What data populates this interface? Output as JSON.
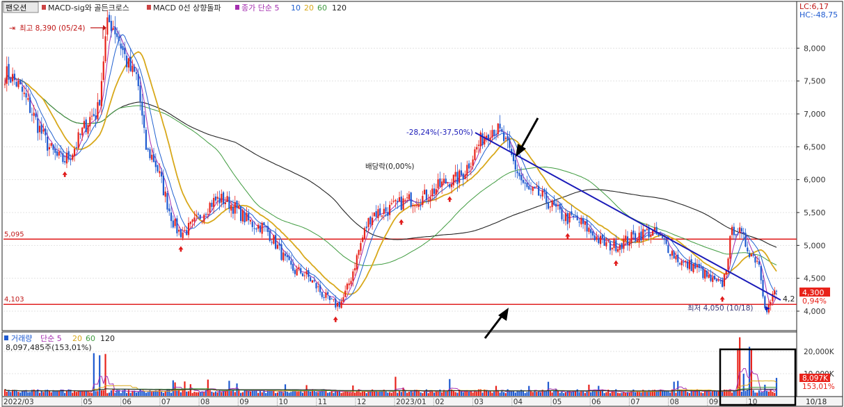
{
  "legend_top": {
    "tab": "팬오션",
    "macd_sig": "MACD-sig와 골든크로스",
    "macd_zero": "MACD 0선 상향돌파",
    "ma_label": "종가 단순 5",
    "ma_periods": [
      "10",
      "20",
      "60",
      "120"
    ]
  },
  "legend_volume": {
    "label": "거래량",
    "ma_label": "단순 5",
    "ma_periods": [
      "20",
      "60",
      "120"
    ],
    "value_text": "8,097,485주(153,01%)"
  },
  "corner_info": {
    "lc": "LC:6,17",
    "hc": "HC:-48,75"
  },
  "badges": {
    "price": "4,300",
    "change": "0,94%",
    "volume": "8,097K",
    "volume_pct": "153,01%",
    "date": "10/18"
  },
  "colors": {
    "up": "#e8221a",
    "down": "#1e5ad0",
    "ma5": "#a52fb0",
    "ma10": "#2060d0",
    "ma20": "#d8a81a",
    "ma60": "#3f9b3f",
    "ma120": "#222222",
    "trend": "#1a1ab8",
    "hline": "#e02222",
    "axis_text": "#333333"
  },
  "chart_data": {
    "type": "candlestick",
    "title": "팬오션",
    "y_axis": {
      "min": 3800,
      "max": 8500,
      "ticks": [
        "8,000",
        "7,500",
        "7,000",
        "6,500",
        "6,000",
        "5,500",
        "5,000",
        "4,500",
        "4,000"
      ],
      "tick_values": [
        8000,
        7500,
        7000,
        6500,
        6000,
        5500,
        5000,
        4500,
        4000
      ]
    },
    "volume_axis": {
      "max": 25000,
      "ticks": [
        "20,000K",
        "10,000K"
      ],
      "tick_values": [
        20000,
        10000
      ]
    },
    "x_axis": {
      "labels": [
        "2022/03",
        "05",
        "06",
        "07",
        "08",
        "09",
        "10",
        "11",
        "12",
        "2023/01",
        "02",
        "03",
        "04",
        "05",
        "06",
        "07",
        "08",
        "09",
        "10"
      ]
    },
    "price_keypoints": [
      [
        "2022/03",
        7600
      ],
      [
        "2022/04",
        6300
      ],
      [
        "2022/05",
        7000
      ],
      [
        "2022/05",
        8390
      ],
      [
        "2022/06",
        7600
      ],
      [
        "2022/06",
        6400
      ],
      [
        "2022/07",
        5200
      ],
      [
        "2022/08",
        5700
      ],
      [
        "2022/09",
        5300
      ],
      [
        "2022/10",
        4600
      ],
      [
        "2022/11",
        4103
      ],
      [
        "2022/12",
        5500
      ],
      [
        "2023/01",
        5700
      ],
      [
        "2023/02",
        6000
      ],
      [
        "2023/03",
        6780
      ],
      [
        "2023/04",
        5800
      ],
      [
        "2023/05",
        5400
      ],
      [
        "2023/06",
        5000
      ],
      [
        "2023/07",
        5200
      ],
      [
        "2023/08",
        4700
      ],
      [
        "2023/09",
        4400
      ],
      [
        "2023/09",
        5250
      ],
      [
        "2023/10",
        4800
      ],
      [
        "2023/10",
        4050
      ],
      [
        "2023/10",
        4300
      ]
    ],
    "horizontal_lines": [
      {
        "value": 5095,
        "label": "5,095"
      },
      {
        "value": 4103,
        "label": "4,103"
      }
    ],
    "annotations": {
      "high": "최고 8,390 (05/24)",
      "low": "최저 4,050 (10/18)",
      "dividend": "배당락(0,00%)",
      "drop": "-28,24%(-37,50%)",
      "trend_end": "4,2"
    },
    "high": 8390,
    "low": 4050,
    "last_close": 4300
  }
}
